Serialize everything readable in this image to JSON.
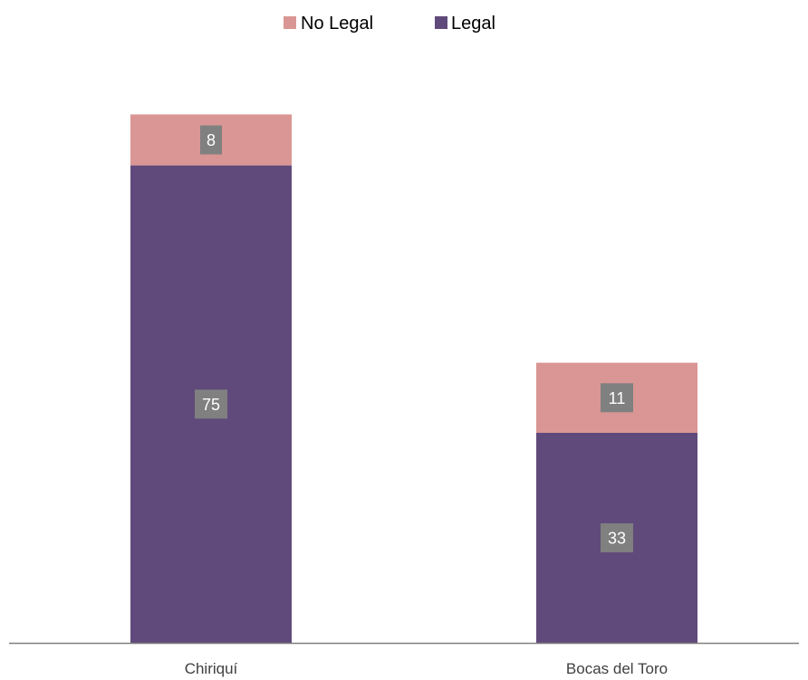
{
  "chart_data": {
    "type": "bar",
    "stacked": true,
    "categories": [
      "Chiriquí",
      "Bocas del Toro"
    ],
    "series": [
      {
        "name": "Legal",
        "values": [
          75,
          33
        ],
        "color": "#604a7b"
      },
      {
        "name": "No Legal",
        "values": [
          8,
          11
        ],
        "color": "#d99694"
      }
    ],
    "legend": {
      "placement": "top-center",
      "order": [
        "No Legal",
        "Legal"
      ]
    },
    "data_labels": {
      "shown": true,
      "box_color": "#808080",
      "text_color": "#ffffff"
    },
    "ylim": [
      0,
      95
    ],
    "grid": false,
    "axis_color": "#808080"
  }
}
